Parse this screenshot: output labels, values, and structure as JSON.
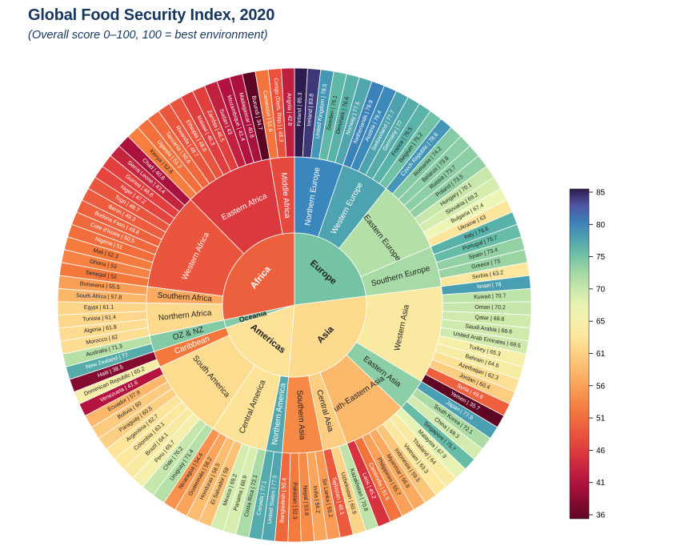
{
  "title": "Global Food Security Index, 2020",
  "subtitle": "(Overall score 0–100, 100 = best environment)",
  "chart_data": {
    "type": "sunburst",
    "colorbar": {
      "min": 36,
      "max": 85,
      "ticks": [
        85,
        80,
        75,
        70,
        65,
        61,
        56,
        51,
        46,
        41,
        36
      ]
    },
    "continents": [
      {
        "name": "Europe",
        "regions": [
          {
            "name": "Northern Europe",
            "countries": [
              [
                "Finland",
                85.3
              ],
              [
                "Ireland",
                83.8
              ],
              [
                "United Kingdom",
                78.5
              ],
              [
                "Sweden",
                76.1
              ],
              [
                "Denmark",
                76.6
              ],
              [
                "Norway",
                77.5
              ]
            ]
          },
          {
            "name": "Western Europe",
            "countries": [
              [
                "Netherlands",
                79.9
              ],
              [
                "Austria",
                79.4
              ],
              [
                "Switzerland",
                77.7
              ],
              [
                "Germany",
                77
              ],
              [
                "France",
                76.5
              ],
              [
                "Belgium",
                75.2
              ]
            ]
          },
          {
            "name": "Eastern Europe",
            "countries": [
              [
                "Czech Republic",
                78.6
              ],
              [
                "Romania",
                74.2
              ],
              [
                "Belarus",
                73.8
              ],
              [
                "Russia",
                73.7
              ],
              [
                "Poland",
                73.5
              ],
              [
                "Hungary",
                70.1
              ],
              [
                "Slovakia",
                69.2
              ],
              [
                "Bulgaria",
                67.4
              ],
              [
                "Ukraine",
                63
              ]
            ]
          },
          {
            "name": "Southern Europe",
            "countries": [
              [
                "Italy",
                76.6
              ],
              [
                "Portugal",
                75.7
              ],
              [
                "Spain",
                73.4
              ],
              [
                "Greece",
                73
              ],
              [
                "Serbia",
                63.2
              ]
            ]
          }
        ]
      },
      {
        "name": "Asia",
        "regions": [
          {
            "name": "Western Asia",
            "countries": [
              [
                "Israel",
                78
              ],
              [
                "Kuwait",
                70.7
              ],
              [
                "Oman",
                70.2
              ],
              [
                "Qatar",
                69.6
              ],
              [
                "Saudi Arabia",
                69.6
              ],
              [
                "United Arab Emirates",
                69.5
              ],
              [
                "Turkey",
                65.3
              ],
              [
                "Bahrain",
                64.6
              ],
              [
                "Azerbaijan",
                62.3
              ],
              [
                "Jordan",
                60.4
              ],
              [
                "Syria",
                49.6
              ],
              [
                "Yemen",
                35.7
              ]
            ]
          },
          {
            "name": "Eastern Asia",
            "countries": [
              [
                "Japan",
                77.9
              ],
              [
                "South Korea",
                72.1
              ],
              [
                "China",
                69.3
              ],
              [
                "Singapore",
                75.7
              ]
            ]
          },
          {
            "name": "South-Eastern Asia",
            "countries": [
              [
                "Malaysia",
                67.9
              ],
              [
                "Thailand",
                64
              ],
              [
                "Vietnam",
                63.3
              ],
              [
                "Indonesia",
                59.5
              ],
              [
                "Myanmar",
                56.6
              ],
              [
                "Philippines",
                55.7
              ],
              [
                "Cambodia",
                51.5
              ],
              [
                "Laos",
                45.2
              ]
            ]
          },
          {
            "name": "Central Asia",
            "countries": [
              [
                "Kazakhstan",
                70.8
              ],
              [
                "Uzbekistan",
                60.9
              ],
              [
                "Tajikistan",
                49.1
              ]
            ]
          },
          {
            "name": "Southern Asia",
            "countries": [
              [
                "Sri Lanka",
                55.2
              ],
              [
                "India",
                56.2
              ],
              [
                "Nepal",
                53.8
              ],
              [
                "Pakistan",
                52.3
              ],
              [
                "Bangladesh",
                50.4
              ]
            ]
          }
        ]
      },
      {
        "name": "Americas",
        "regions": [
          {
            "name": "Northern America",
            "countries": [
              [
                "United States",
                77.5
              ],
              [
                "Canada",
                77.1
              ]
            ]
          },
          {
            "name": "Central America",
            "countries": [
              [
                "Costa Rica",
                72.1
              ],
              [
                "Panama",
                68.9
              ],
              [
                "Mexico",
                69.2
              ],
              [
                "El Salvador",
                59
              ],
              [
                "Honduras",
                58.5
              ],
              [
                "Guatemala",
                56.2
              ],
              [
                "Nicaragua",
                54.4
              ]
            ]
          },
          {
            "name": "South America",
            "countries": [
              [
                "Uruguay",
                71.4
              ],
              [
                "Chile",
                70.2
              ],
              [
                "Peru",
                65.7
              ],
              [
                "Brazil",
                64.1
              ],
              [
                "Colombia",
                63.1
              ],
              [
                "Argentina",
                62.7
              ],
              [
                "Paraguay",
                60.5
              ],
              [
                "Bolivia",
                60
              ],
              [
                "Ecuador",
                57.9
              ],
              [
                "Venezuela",
                41.6
              ]
            ]
          },
          {
            "name": "Caribbean",
            "countries": [
              [
                "Dominican Republic",
                65.2
              ],
              [
                "Haiti",
                38.5
              ]
            ]
          }
        ]
      },
      {
        "name": "Oceania",
        "regions": [
          {
            "name": "OZ & NZ",
            "countries": [
              [
                "New Zealand",
                77
              ],
              [
                "Australia",
                71.3
              ]
            ]
          }
        ]
      },
      {
        "name": "Africa",
        "regions": [
          {
            "name": "Northern Africa",
            "countries": [
              [
                "Morocco",
                62
              ],
              [
                "Algeria",
                61.8
              ],
              [
                "Tunisia",
                61.4
              ],
              [
                "Egypt",
                61.1
              ]
            ]
          },
          {
            "name": "Southern Africa",
            "countries": [
              [
                "South Africa",
                57.8
              ],
              [
                "Botswana",
                55.5
              ]
            ]
          },
          {
            "name": "Western Africa",
            "countries": [
              [
                "Senegal",
                52
              ],
              [
                "Ghana",
                53
              ],
              [
                "Mali",
                52.3
              ],
              [
                "Nigeria",
                51
              ],
              [
                "Cote d'Ivoire",
                50.5
              ],
              [
                "Burkina Faso",
                49.8
              ],
              [
                "Benin",
                49.3
              ],
              [
                "Togo",
                48.7
              ],
              [
                "Niger",
                47.2
              ],
              [
                "Guinea",
                46.6
              ],
              [
                "Sierra Leone",
                43.4
              ],
              [
                "Chad",
                40.8
              ]
            ]
          },
          {
            "name": "Eastern Africa",
            "countries": [
              [
                "Kenya",
                52.6
              ],
              [
                "Uganda",
                51.2
              ],
              [
                "Tanzania",
                50.6
              ],
              [
                "Rwanda",
                48.7
              ],
              [
                "Ethiopia",
                48.6
              ],
              [
                "Malawi",
                46.3
              ],
              [
                "Zambia",
                46.5
              ],
              [
                "Sudan",
                43
              ],
              [
                "Mozambique",
                41.4
              ],
              [
                "Madagascar",
                40.8
              ],
              [
                "Burundi",
                34.7
              ]
            ]
          },
          {
            "name": "Middle Africa",
            "countries": [
              [
                "Cameroon",
                51.6
              ],
              [
                "Congo (Dem. Rep.)",
                48.3
              ],
              [
                "Angola",
                42.8
              ]
            ]
          }
        ]
      }
    ]
  }
}
